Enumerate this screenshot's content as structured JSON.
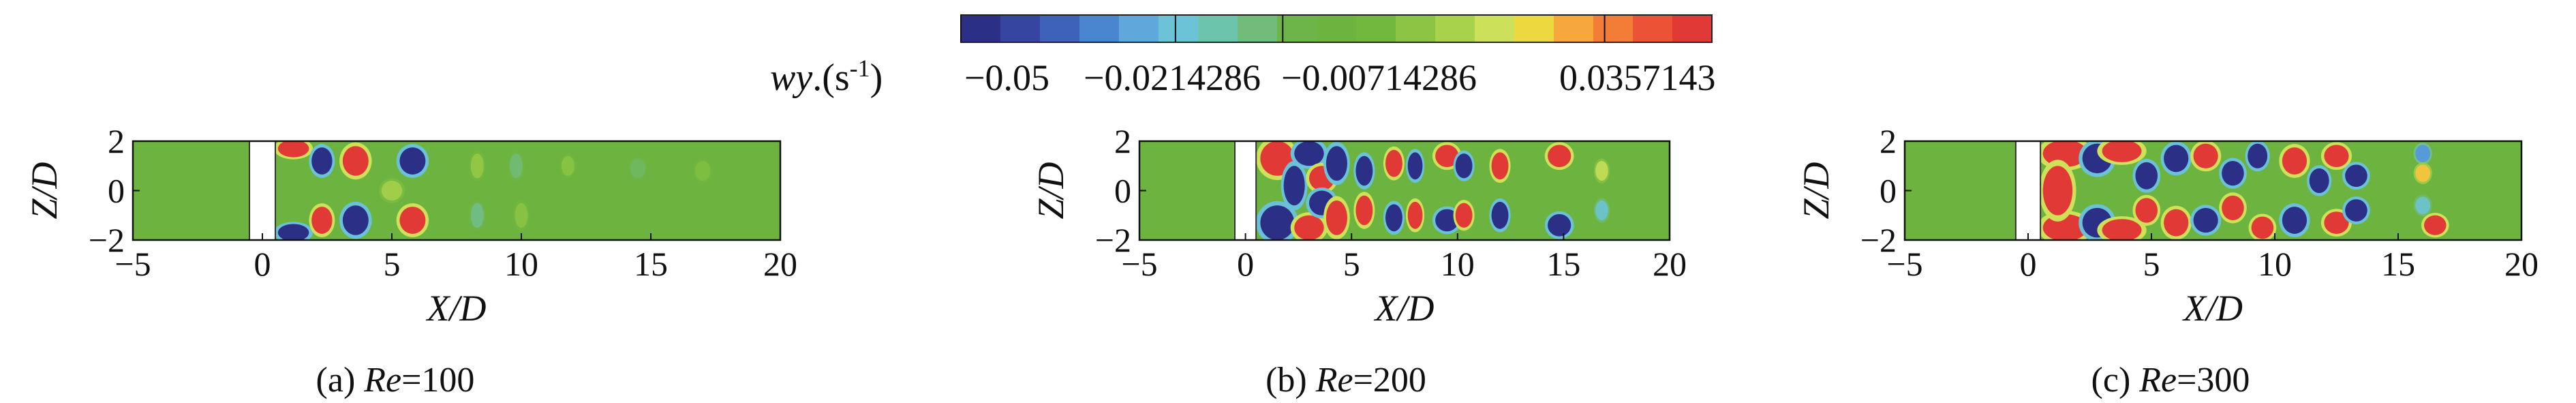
{
  "colorbar": {
    "label_var": "wy",
    "label_unit_prefix": ".(s",
    "label_unit_exp": "-1",
    "label_unit_suffix": ")",
    "ticks": [
      "−0.05",
      "−0.0214286",
      "−0.00714286",
      "0.0357143"
    ],
    "tick_values": [
      -0.05,
      -0.0214286,
      -0.00714286,
      0.0357143
    ],
    "range": [
      -0.05,
      0.05
    ],
    "colors": [
      "#2b2f86",
      "#3545a0",
      "#3d62b8",
      "#4a86d0",
      "#5ea8dc",
      "#6cc3d8",
      "#6dc4ad",
      "#71bb7b",
      "#6db548",
      "#6db33f",
      "#72b83e",
      "#8cc544",
      "#a9d24c",
      "#cde05a",
      "#ecd93f",
      "#f6a83a",
      "#f37c37",
      "#ec5236",
      "#e13a36"
    ]
  },
  "chart_data": [
    {
      "type": "heatmap",
      "caption_prefix": "(a) ",
      "caption_var": "Re",
      "caption_value": "=100",
      "xlabel": "X/D",
      "ylabel": "Z/D",
      "xlim": [
        -5,
        20
      ],
      "ylim": [
        -2,
        2
      ],
      "xticks": [
        "−5",
        "0",
        "5",
        "10",
        "15",
        "20"
      ],
      "yticks": [
        "2",
        "0",
        "−2"
      ],
      "background_value": 0,
      "obstacle": {
        "x": [
          -0.5,
          0.5
        ]
      },
      "vortices": [
        {
          "x": 1.2,
          "z": 1.7,
          "v": 0.05,
          "rx": 0.6,
          "rz": 0.35
        },
        {
          "x": 1.2,
          "z": -1.7,
          "v": -0.05,
          "rx": 0.6,
          "rz": 0.35
        },
        {
          "x": 2.3,
          "z": 1.2,
          "v": -0.05,
          "rx": 0.4,
          "rz": 0.55
        },
        {
          "x": 2.3,
          "z": -1.2,
          "v": 0.05,
          "rx": 0.4,
          "rz": 0.55
        },
        {
          "x": 3.6,
          "z": 1.2,
          "v": 0.05,
          "rx": 0.5,
          "rz": 0.6
        },
        {
          "x": 3.6,
          "z": -1.2,
          "v": -0.05,
          "rx": 0.5,
          "rz": 0.6
        },
        {
          "x": 5.8,
          "z": 1.2,
          "v": -0.05,
          "rx": 0.5,
          "rz": 0.55
        },
        {
          "x": 5.8,
          "z": -1.2,
          "v": 0.05,
          "rx": 0.5,
          "rz": 0.55
        },
        {
          "x": 5.0,
          "z": 0.0,
          "v": 0.015,
          "rx": 0.4,
          "rz": 0.4
        },
        {
          "x": 8.3,
          "z": 1.0,
          "v": 0.012,
          "rx": 0.25,
          "rz": 0.5
        },
        {
          "x": 8.3,
          "z": -1.0,
          "v": -0.012,
          "rx": 0.25,
          "rz": 0.5
        },
        {
          "x": 9.8,
          "z": 1.0,
          "v": -0.01,
          "rx": 0.25,
          "rz": 0.5
        },
        {
          "x": 10.0,
          "z": -1.0,
          "v": 0.01,
          "rx": 0.25,
          "rz": 0.5
        },
        {
          "x": 11.8,
          "z": 1.0,
          "v": 0.01,
          "rx": 0.25,
          "rz": 0.4
        },
        {
          "x": 14.5,
          "z": 0.9,
          "v": -0.008,
          "rx": 0.3,
          "rz": 0.4
        },
        {
          "x": 17.0,
          "z": 0.8,
          "v": 0.008,
          "rx": 0.3,
          "rz": 0.4
        }
      ]
    },
    {
      "type": "heatmap",
      "caption_prefix": "(b) ",
      "caption_var": "Re",
      "caption_value": "=200",
      "xlabel": "X/D",
      "ylabel": "Z/D",
      "xlim": [
        -5,
        20
      ],
      "ylim": [
        -2,
        2
      ],
      "xticks": [
        "−5",
        "0",
        "5",
        "10",
        "15",
        "20"
      ],
      "yticks": [
        "2",
        "0",
        "−2"
      ],
      "background_value": 0,
      "obstacle": {
        "x": [
          -0.5,
          0.5
        ]
      },
      "vortices": [
        {
          "x": 1.5,
          "z": 1.3,
          "v": 0.05,
          "rx": 0.8,
          "rz": 0.7
        },
        {
          "x": 1.5,
          "z": -1.3,
          "v": -0.05,
          "rx": 0.8,
          "rz": 0.7
        },
        {
          "x": 2.3,
          "z": 0.2,
          "v": -0.05,
          "rx": 0.5,
          "rz": 0.8
        },
        {
          "x": 3.0,
          "z": 1.5,
          "v": -0.05,
          "rx": 0.7,
          "rz": 0.5
        },
        {
          "x": 3.0,
          "z": -1.5,
          "v": 0.05,
          "rx": 0.7,
          "rz": 0.5
        },
        {
          "x": 3.6,
          "z": 0.5,
          "v": 0.05,
          "rx": 0.6,
          "rz": 0.5
        },
        {
          "x": 3.6,
          "z": -0.5,
          "v": -0.05,
          "rx": 0.6,
          "rz": 0.5
        },
        {
          "x": 4.3,
          "z": 1.1,
          "v": -0.05,
          "rx": 0.5,
          "rz": 0.7
        },
        {
          "x": 4.3,
          "z": -1.1,
          "v": 0.05,
          "rx": 0.5,
          "rz": 0.7
        },
        {
          "x": 5.6,
          "z": 0.8,
          "v": -0.05,
          "rx": 0.4,
          "rz": 0.6
        },
        {
          "x": 5.6,
          "z": -0.8,
          "v": 0.05,
          "rx": 0.4,
          "rz": 0.6
        },
        {
          "x": 7.0,
          "z": 1.1,
          "v": 0.05,
          "rx": 0.4,
          "rz": 0.55
        },
        {
          "x": 7.0,
          "z": -1.1,
          "v": -0.05,
          "rx": 0.4,
          "rz": 0.55
        },
        {
          "x": 8.0,
          "z": 1.0,
          "v": -0.05,
          "rx": 0.35,
          "rz": 0.55
        },
        {
          "x": 8.0,
          "z": -1.0,
          "v": 0.05,
          "rx": 0.35,
          "rz": 0.55
        },
        {
          "x": 9.5,
          "z": 1.4,
          "v": 0.05,
          "rx": 0.55,
          "rz": 0.45
        },
        {
          "x": 9.5,
          "z": -1.2,
          "v": -0.05,
          "rx": 0.55,
          "rz": 0.45
        },
        {
          "x": 10.3,
          "z": 1.0,
          "v": -0.05,
          "rx": 0.4,
          "rz": 0.5
        },
        {
          "x": 10.3,
          "z": -1.0,
          "v": 0.05,
          "rx": 0.4,
          "rz": 0.5
        },
        {
          "x": 12.0,
          "z": 1.0,
          "v": 0.05,
          "rx": 0.4,
          "rz": 0.55
        },
        {
          "x": 12.0,
          "z": -1.0,
          "v": -0.05,
          "rx": 0.4,
          "rz": 0.55
        },
        {
          "x": 14.8,
          "z": 1.4,
          "v": 0.05,
          "rx": 0.55,
          "rz": 0.45
        },
        {
          "x": 14.8,
          "z": -1.4,
          "v": -0.05,
          "rx": 0.55,
          "rz": 0.45
        },
        {
          "x": 16.8,
          "z": 0.8,
          "v": 0.02,
          "rx": 0.3,
          "rz": 0.4
        },
        {
          "x": 16.8,
          "z": -0.8,
          "v": -0.02,
          "rx": 0.3,
          "rz": 0.4
        }
      ]
    },
    {
      "type": "heatmap",
      "caption_prefix": "(c) ",
      "caption_var": "Re",
      "caption_value": "=300",
      "xlabel": "X/D",
      "ylabel": "Z/D",
      "xlim": [
        -5,
        20
      ],
      "ylim": [
        -2,
        2
      ],
      "xticks": [
        "−5",
        "0",
        "5",
        "10",
        "15",
        "20"
      ],
      "yticks": [
        "2",
        "0",
        "−2"
      ],
      "background_value": 0,
      "obstacle": {
        "x": [
          -0.5,
          0.5
        ]
      },
      "vortices": [
        {
          "x": 1.5,
          "z": 1.5,
          "v": 0.05,
          "rx": 0.9,
          "rz": 0.55
        },
        {
          "x": 1.5,
          "z": -1.5,
          "v": 0.05,
          "rx": 0.9,
          "rz": 0.55
        },
        {
          "x": 1.2,
          "z": 0.0,
          "v": 0.05,
          "rx": 0.6,
          "rz": 1.0
        },
        {
          "x": 2.8,
          "z": 1.3,
          "v": -0.05,
          "rx": 0.6,
          "rz": 0.6
        },
        {
          "x": 2.8,
          "z": -1.3,
          "v": -0.05,
          "rx": 0.6,
          "rz": 0.6
        },
        {
          "x": 3.8,
          "z": 1.6,
          "v": 0.05,
          "rx": 0.8,
          "rz": 0.45
        },
        {
          "x": 3.8,
          "z": -1.6,
          "v": 0.05,
          "rx": 0.8,
          "rz": 0.45
        },
        {
          "x": 4.8,
          "z": 0.6,
          "v": -0.05,
          "rx": 0.45,
          "rz": 0.55
        },
        {
          "x": 4.8,
          "z": -0.8,
          "v": 0.05,
          "rx": 0.45,
          "rz": 0.5
        },
        {
          "x": 6.0,
          "z": 1.3,
          "v": -0.05,
          "rx": 0.5,
          "rz": 0.55
        },
        {
          "x": 6.0,
          "z": -1.3,
          "v": 0.05,
          "rx": 0.5,
          "rz": 0.55
        },
        {
          "x": 7.2,
          "z": 1.4,
          "v": 0.05,
          "rx": 0.5,
          "rz": 0.5
        },
        {
          "x": 7.2,
          "z": -1.2,
          "v": -0.05,
          "rx": 0.5,
          "rz": 0.5
        },
        {
          "x": 8.3,
          "z": 0.7,
          "v": -0.05,
          "rx": 0.45,
          "rz": 0.5
        },
        {
          "x": 8.3,
          "z": -0.7,
          "v": 0.05,
          "rx": 0.45,
          "rz": 0.5
        },
        {
          "x": 9.3,
          "z": 1.4,
          "v": -0.05,
          "rx": 0.4,
          "rz": 0.5
        },
        {
          "x": 9.5,
          "z": -1.5,
          "v": 0.05,
          "rx": 0.45,
          "rz": 0.45
        },
        {
          "x": 10.8,
          "z": 1.2,
          "v": 0.05,
          "rx": 0.5,
          "rz": 0.55
        },
        {
          "x": 10.8,
          "z": -1.2,
          "v": -0.05,
          "rx": 0.5,
          "rz": 0.55
        },
        {
          "x": 11.8,
          "z": 0.4,
          "v": -0.05,
          "rx": 0.4,
          "rz": 0.5
        },
        {
          "x": 12.5,
          "z": 1.4,
          "v": 0.05,
          "rx": 0.5,
          "rz": 0.45
        },
        {
          "x": 12.5,
          "z": -1.3,
          "v": 0.05,
          "rx": 0.5,
          "rz": 0.45
        },
        {
          "x": 13.3,
          "z": 0.6,
          "v": -0.05,
          "rx": 0.45,
          "rz": 0.45
        },
        {
          "x": 13.3,
          "z": -0.8,
          "v": -0.05,
          "rx": 0.45,
          "rz": 0.45
        },
        {
          "x": 16.0,
          "z": 1.5,
          "v": -0.03,
          "rx": 0.3,
          "rz": 0.35
        },
        {
          "x": 16.0,
          "z": 0.7,
          "v": 0.03,
          "rx": 0.3,
          "rz": 0.35
        },
        {
          "x": 16.5,
          "z": -1.4,
          "v": 0.05,
          "rx": 0.45,
          "rz": 0.4
        },
        {
          "x": 16.0,
          "z": -0.6,
          "v": -0.02,
          "rx": 0.3,
          "rz": 0.35
        }
      ]
    }
  ]
}
